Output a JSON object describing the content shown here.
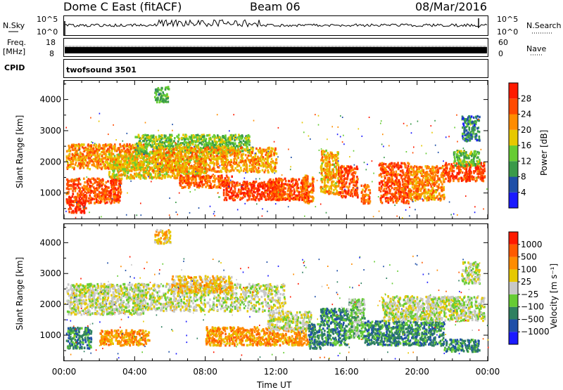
{
  "header": {
    "title": "Dome C East (fitACF)",
    "beam": "Beam 06",
    "date": "08/Mar/2016"
  },
  "summary": {
    "nsky_label": "N.Sky",
    "nsky_ticks": [
      "10^5",
      "10^0"
    ],
    "nsearch_label": "N.Search",
    "freq_label_1": "Freq.",
    "freq_label_2": "[MHz]",
    "freq_ticks": [
      "18",
      "8"
    ],
    "nave_label": "Nave",
    "nave_ticks": [
      "60",
      "0"
    ],
    "cpid_label": "CPID",
    "cpid_value": "twofsound 3501"
  },
  "colors": {
    "red": "#ff1a00",
    "orange": "#ff8c00",
    "yellow": "#e6c800",
    "lightgreen": "#66cc33",
    "green": "#3a9a4a",
    "teal": "#2f8060",
    "blue": "#1f4fa8",
    "deepblue": "#1a1aff",
    "grey": "#c8c8c8",
    "darkgrey": "#9a9a9a"
  },
  "chart_data": [
    {
      "type": "heatmap",
      "panel": "power",
      "xlabel": "Time UT",
      "ylabel": "Slant Range [km]",
      "xlim": [
        0,
        24
      ],
      "ylim": [
        180,
        4600
      ],
      "x_tick_labels": [
        "00:00",
        "04:00",
        "08:00",
        "12:00",
        "16:00",
        "20:00",
        "00:00"
      ],
      "y_ticks": [
        1000,
        2000,
        3000,
        4000
      ],
      "y_tick_labels": [
        "1000",
        "2000",
        "3000",
        "4000"
      ],
      "colorbar": {
        "label": "Power [dB]",
        "range": [
          0,
          32
        ],
        "tick_values": [
          4,
          8,
          12,
          16,
          20,
          24,
          28
        ],
        "tick_labels": [
          "4",
          "8",
          "12",
          "16",
          "20",
          "24",
          "28"
        ],
        "colors": [
          "#1a1aff",
          "#1f4fa8",
          "#3a9a4a",
          "#66cc33",
          "#e6c800",
          "#ff8c00",
          "#ff4a00",
          "#ff1a00"
        ]
      },
      "regions": [
        {
          "t": [
            0.1,
            3.2
          ],
          "r": [
            700,
            1500
          ],
          "v": 26
        },
        {
          "t": [
            0.1,
            4.5
          ],
          "r": [
            1800,
            2600
          ],
          "v": 22
        },
        {
          "t": [
            0.2,
            1.2
          ],
          "r": [
            400,
            800
          ],
          "v": 28
        },
        {
          "t": [
            2.5,
            8.0
          ],
          "r": [
            1500,
            2300
          ],
          "v": 18
        },
        {
          "t": [
            4.0,
            10.5
          ],
          "r": [
            2300,
            2900
          ],
          "v": 14
        },
        {
          "t": [
            5.0,
            12.0
          ],
          "r": [
            1700,
            2500
          ],
          "v": 21
        },
        {
          "t": [
            6.5,
            9.5
          ],
          "r": [
            1200,
            1600
          ],
          "v": 25
        },
        {
          "t": [
            9.0,
            12.2
          ],
          "r": [
            800,
            1400
          ],
          "v": 28
        },
        {
          "t": [
            11.5,
            13.8
          ],
          "r": [
            800,
            1500
          ],
          "v": 26
        },
        {
          "t": [
            13.5,
            14.1
          ],
          "r": [
            700,
            1600
          ],
          "v": 24
        },
        {
          "t": [
            14.5,
            15.5
          ],
          "r": [
            1000,
            2400
          ],
          "v": 20
        },
        {
          "t": [
            15.5,
            16.6
          ],
          "r": [
            900,
            1900
          ],
          "v": 26
        },
        {
          "t": [
            16.8,
            17.3
          ],
          "r": [
            700,
            1300
          ],
          "v": 24
        },
        {
          "t": [
            17.8,
            19.5
          ],
          "r": [
            700,
            2000
          ],
          "v": 26
        },
        {
          "t": [
            19.5,
            21.5
          ],
          "r": [
            800,
            1900
          ],
          "v": 23
        },
        {
          "t": [
            21.5,
            23.8
          ],
          "r": [
            1400,
            2000
          ],
          "v": 27
        },
        {
          "t": [
            22.0,
            23.5
          ],
          "r": [
            1900,
            2400
          ],
          "v": 13
        },
        {
          "t": [
            5.1,
            5.9
          ],
          "r": [
            3950,
            4450
          ],
          "v": 12
        },
        {
          "t": [
            22.5,
            23.5
          ],
          "r": [
            2700,
            3500
          ],
          "v": 8
        }
      ]
    },
    {
      "type": "heatmap",
      "panel": "velocity",
      "xlabel": "Time UT",
      "ylabel": "Slant Range [km]",
      "xlim": [
        0,
        24
      ],
      "ylim": [
        180,
        4600
      ],
      "x_tick_labels": [
        "00:00",
        "04:00",
        "08:00",
        "12:00",
        "16:00",
        "20:00",
        "00:00"
      ],
      "y_ticks": [
        1000,
        2000,
        3000,
        4000
      ],
      "y_tick_labels": [
        "1000",
        "2000",
        "3000",
        "4000"
      ],
      "colorbar": {
        "label": "Velocity [m s⁻¹]",
        "tick_labels": [
          "1000",
          "500",
          "100",
          "25",
          "−25",
          "−100",
          "−500",
          "−1000"
        ],
        "colors": [
          "#1a1aff",
          "#1f4fa8",
          "#2f8060",
          "#66cc33",
          "#c8c8c8",
          "#e6c800",
          "#ff8c00",
          "#ff5a00",
          "#ff1a00"
        ]
      },
      "regions": [
        {
          "t": [
            0.1,
            1.5
          ],
          "r": [
            600,
            1300
          ],
          "v": 2
        },
        {
          "t": [
            0.1,
            4.5
          ],
          "r": [
            1700,
            2700
          ],
          "v": 4
        },
        {
          "t": [
            2.0,
            4.8
          ],
          "r": [
            700,
            1200
          ],
          "v": 6
        },
        {
          "t": [
            4.0,
            12.5
          ],
          "r": [
            1800,
            2700
          ],
          "v": 4
        },
        {
          "t": [
            6.0,
            9.5
          ],
          "r": [
            2400,
            2950
          ],
          "v": 5
        },
        {
          "t": [
            8.0,
            13.8
          ],
          "r": [
            700,
            1300
          ],
          "v": 6
        },
        {
          "t": [
            11.5,
            14.0
          ],
          "r": [
            1200,
            1800
          ],
          "v": 4
        },
        {
          "t": [
            13.8,
            14.5
          ],
          "r": [
            600,
            1400
          ],
          "v": 2
        },
        {
          "t": [
            14.5,
            16.0
          ],
          "r": [
            700,
            1900
          ],
          "v": 2
        },
        {
          "t": [
            16.0,
            17.0
          ],
          "r": [
            900,
            2200
          ],
          "v": 3
        },
        {
          "t": [
            17.0,
            21.5
          ],
          "r": [
            700,
            1500
          ],
          "v": 2
        },
        {
          "t": [
            18.0,
            23.8
          ],
          "r": [
            1500,
            2300
          ],
          "v": 4
        },
        {
          "t": [
            21.5,
            23.5
          ],
          "r": [
            500,
            900
          ],
          "v": 2
        },
        {
          "t": [
            5.1,
            6.0
          ],
          "r": [
            4000,
            4450
          ],
          "v": 5
        },
        {
          "t": [
            22.5,
            23.5
          ],
          "r": [
            2700,
            3400
          ],
          "v": 4
        }
      ]
    }
  ]
}
